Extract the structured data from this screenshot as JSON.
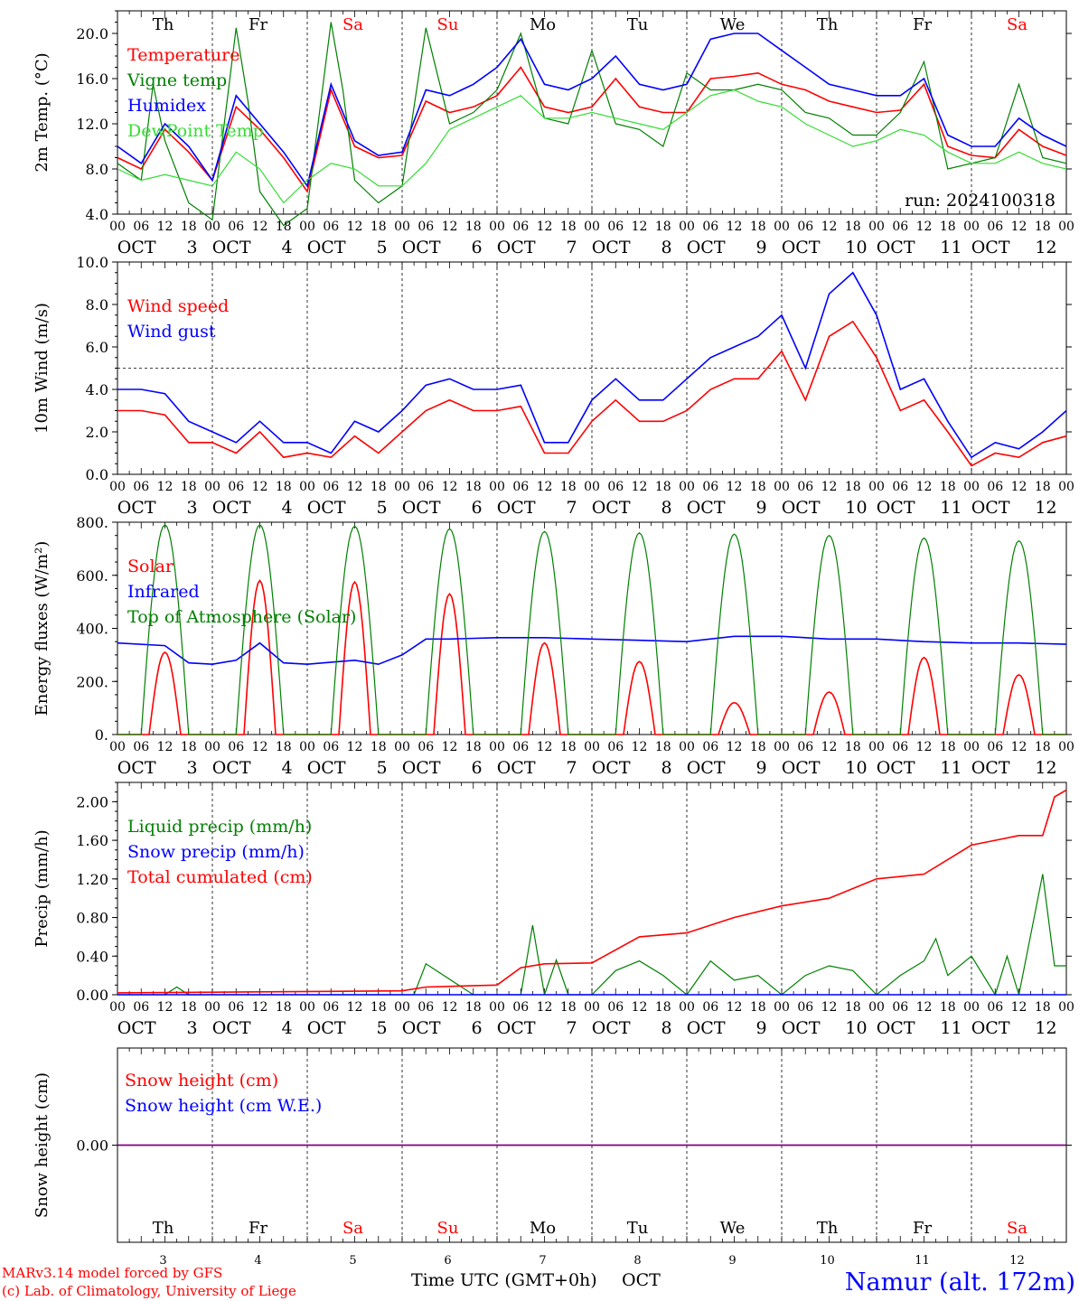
{
  "days": {
    "names": [
      "Th",
      "Fr",
      "Sa",
      "Su",
      "Mo",
      "Tu",
      "We",
      "Th",
      "Fr",
      "Sa"
    ],
    "weekend_flags": [
      false,
      false,
      true,
      true,
      false,
      false,
      false,
      false,
      false,
      true
    ],
    "dates": [
      "3",
      "4",
      "5",
      "6",
      "7",
      "8",
      "9",
      "10",
      "11",
      "12"
    ],
    "month": "OCT",
    "hour_ticks": [
      "00",
      "06",
      "12",
      "18"
    ],
    "final_hour": "00"
  },
  "colors": {
    "red": "#ff0000",
    "green": "#008000",
    "blue": "#0000ff",
    "lightgreen": "#33dd33",
    "purple": "#800080",
    "weekend": "#ff0000",
    "dark": "#000000"
  },
  "run_label": "run: 2024100318",
  "footer": {
    "model": "MARv3.14 model forced by GFS",
    "copyright": "(c) Lab. of Climatology, University of Liege",
    "xlabel": "Time UTC (GMT+0h)",
    "month": "OCT",
    "station": "Namur (alt. 172m)"
  },
  "chart_data": [
    {
      "type": "line",
      "ylabel": "2m Temp. (°C)",
      "ylim": [
        4,
        22
      ],
      "yticks": [
        "4.0",
        "8.0",
        "12.0",
        "16.0",
        "20.0"
      ],
      "ytick_values": [
        4,
        8,
        12,
        16,
        20
      ],
      "x_unit": "hours since Oct 3 00 UTC",
      "series": [
        {
          "name": "Temperature",
          "color": "red",
          "x": [
            0,
            6,
            12,
            18,
            24,
            30,
            36,
            42,
            48,
            54,
            60,
            66,
            72,
            78,
            84,
            90,
            96,
            102,
            108,
            114,
            120,
            126,
            132,
            138,
            144,
            150,
            156,
            162,
            168,
            174,
            180,
            186,
            192,
            198,
            204,
            210,
            216,
            222,
            228,
            234,
            240
          ],
          "y": [
            9.0,
            8.0,
            11.5,
            9.5,
            7.0,
            13.5,
            11.5,
            9.0,
            6.0,
            15.0,
            10.0,
            9.0,
            9.2,
            14.0,
            13.0,
            13.5,
            14.5,
            17.0,
            13.5,
            13.0,
            13.5,
            16.0,
            13.5,
            13.0,
            13.0,
            16.0,
            16.2,
            16.5,
            15.5,
            15.0,
            14.0,
            13.5,
            13.0,
            13.2,
            15.5,
            10.0,
            9.2,
            9.0,
            11.5,
            10.0,
            9.2
          ]
        },
        {
          "name": "Vigne temp",
          "color": "green",
          "x": [
            0,
            6,
            9,
            12,
            18,
            24,
            30,
            33,
            36,
            42,
            48,
            54,
            57,
            60,
            66,
            72,
            78,
            84,
            90,
            96,
            102,
            108,
            114,
            120,
            126,
            132,
            138,
            144,
            150,
            156,
            162,
            168,
            174,
            180,
            186,
            192,
            198,
            204,
            210,
            216,
            222,
            228,
            234,
            240
          ],
          "y": [
            8.5,
            7.0,
            15.5,
            10.5,
            5.0,
            3.5,
            20.5,
            14.0,
            6.0,
            3.0,
            4.5,
            21.0,
            15.0,
            7.0,
            5.0,
            6.5,
            20.5,
            12.0,
            13.0,
            15.0,
            20.0,
            12.5,
            12.0,
            18.5,
            12.0,
            11.5,
            10.0,
            16.5,
            15.0,
            15.0,
            15.5,
            15.0,
            13.0,
            12.5,
            11.0,
            11.0,
            13.0,
            17.5,
            8.0,
            8.5,
            9.0,
            15.5,
            9.0,
            8.5
          ]
        },
        {
          "name": "Humidex",
          "color": "blue",
          "x": [
            0,
            6,
            12,
            18,
            24,
            30,
            36,
            42,
            48,
            54,
            60,
            66,
            72,
            78,
            84,
            90,
            96,
            102,
            108,
            114,
            120,
            126,
            132,
            138,
            144,
            150,
            156,
            162,
            168,
            174,
            180,
            186,
            192,
            198,
            204,
            210,
            216,
            222,
            228,
            234,
            240
          ],
          "y": [
            10.0,
            8.5,
            12.0,
            10.0,
            7.0,
            14.5,
            12.0,
            9.5,
            6.5,
            15.5,
            10.5,
            9.2,
            9.5,
            15.0,
            14.5,
            15.5,
            17.0,
            19.5,
            15.5,
            15.0,
            16.0,
            18.0,
            15.5,
            15.0,
            15.5,
            19.5,
            20.0,
            20.0,
            18.5,
            17.0,
            15.5,
            15.0,
            14.5,
            14.5,
            16.0,
            11.0,
            10.0,
            10.0,
            12.5,
            11.0,
            10.0
          ]
        },
        {
          "name": "DewPoint Temp",
          "color": "lightgreen",
          "x": [
            0,
            6,
            12,
            18,
            24,
            30,
            36,
            42,
            48,
            54,
            60,
            66,
            72,
            78,
            84,
            90,
            96,
            102,
            108,
            114,
            120,
            126,
            132,
            138,
            144,
            150,
            156,
            162,
            168,
            174,
            180,
            186,
            192,
            198,
            204,
            210,
            216,
            222,
            228,
            234,
            240
          ],
          "y": [
            8.0,
            7.0,
            7.5,
            7.0,
            6.5,
            9.5,
            8.0,
            5.0,
            7.0,
            8.5,
            8.0,
            6.5,
            6.5,
            8.5,
            11.5,
            12.5,
            13.5,
            14.5,
            12.5,
            12.5,
            13.0,
            12.5,
            12.0,
            11.5,
            13.0,
            14.5,
            15.0,
            14.0,
            13.5,
            12.0,
            11.0,
            10.0,
            10.5,
            11.5,
            11.0,
            9.5,
            8.5,
            8.5,
            9.5,
            8.5,
            8.0
          ]
        }
      ]
    },
    {
      "type": "line",
      "ylabel": "10m Wind (m/s)",
      "ylim": [
        0,
        10
      ],
      "yticks": [
        "0.0",
        "2.0",
        "4.0",
        "6.0",
        "8.0",
        "10.0"
      ],
      "ytick_values": [
        0,
        2,
        4,
        6,
        8,
        10
      ],
      "reference_line": 5,
      "x_unit": "hours since Oct 3 00 UTC",
      "series": [
        {
          "name": "Wind speed",
          "color": "red",
          "x": [
            0,
            6,
            12,
            18,
            24,
            30,
            36,
            42,
            48,
            54,
            60,
            66,
            72,
            78,
            84,
            90,
            96,
            102,
            108,
            114,
            120,
            126,
            132,
            138,
            144,
            150,
            156,
            162,
            168,
            174,
            180,
            186,
            192,
            198,
            204,
            210,
            216,
            222,
            228,
            234,
            240
          ],
          "y": [
            3.0,
            3.0,
            2.8,
            1.5,
            1.5,
            1.0,
            2.0,
            0.8,
            1.0,
            0.8,
            1.8,
            1.0,
            2.0,
            3.0,
            3.5,
            3.0,
            3.0,
            3.2,
            1.0,
            1.0,
            2.5,
            3.5,
            2.5,
            2.5,
            3.0,
            4.0,
            4.5,
            4.5,
            5.8,
            3.5,
            6.5,
            7.2,
            5.5,
            3.0,
            3.5,
            2.0,
            0.4,
            1.0,
            0.8,
            1.5,
            1.8
          ]
        },
        {
          "name": "Wind gust",
          "color": "blue",
          "x": [
            0,
            6,
            12,
            18,
            24,
            30,
            36,
            42,
            48,
            54,
            60,
            66,
            72,
            78,
            84,
            90,
            96,
            102,
            108,
            114,
            120,
            126,
            132,
            138,
            144,
            150,
            156,
            162,
            168,
            174,
            180,
            186,
            192,
            198,
            204,
            210,
            216,
            222,
            228,
            234,
            240
          ],
          "y": [
            4.0,
            4.0,
            3.8,
            2.5,
            2.0,
            1.5,
            2.5,
            1.5,
            1.5,
            1.0,
            2.5,
            2.0,
            3.0,
            4.2,
            4.5,
            4.0,
            4.0,
            4.2,
            1.5,
            1.5,
            3.5,
            4.5,
            3.5,
            3.5,
            4.5,
            5.5,
            6.0,
            6.5,
            7.5,
            5.0,
            8.5,
            9.5,
            7.5,
            4.0,
            4.5,
            2.5,
            0.8,
            1.5,
            1.2,
            2.0,
            3.0
          ]
        }
      ]
    },
    {
      "type": "line",
      "ylabel": "Energy fluxes (W/m²)",
      "ylim": [
        0,
        800
      ],
      "yticks": [
        "0.",
        "200.",
        "400.",
        "600.",
        "800."
      ],
      "ytick_values": [
        0,
        200,
        400,
        600,
        800
      ],
      "x_unit": "hours since Oct 3 00 UTC",
      "series": [
        {
          "name": "Solar",
          "color": "red",
          "peaks": [
            310,
            580,
            575,
            530,
            345,
            275,
            120,
            160,
            290,
            225
          ]
        },
        {
          "name": "Infrared",
          "color": "blue",
          "x": [
            0,
            12,
            18,
            24,
            30,
            36,
            42,
            48,
            60,
            66,
            72,
            78,
            84,
            96,
            108,
            120,
            132,
            144,
            156,
            168,
            180,
            192,
            204,
            216,
            228,
            240
          ],
          "y": [
            345,
            335,
            270,
            265,
            280,
            345,
            270,
            265,
            280,
            265,
            300,
            360,
            360,
            365,
            365,
            360,
            355,
            350,
            370,
            370,
            360,
            360,
            350,
            345,
            345,
            340
          ]
        },
        {
          "name": "Top of Atmosphere (Solar)",
          "color": "green",
          "peaks": [
            790,
            790,
            785,
            775,
            765,
            760,
            755,
            750,
            740,
            730
          ]
        }
      ]
    },
    {
      "type": "line",
      "ylabel": "Precip (mm/h)",
      "ylim": [
        0,
        2.2
      ],
      "yticks": [
        "0.00",
        "0.40",
        "0.80",
        "1.20",
        "1.60",
        "2.00"
      ],
      "ytick_values": [
        0,
        0.4,
        0.8,
        1.2,
        1.6,
        2.0
      ],
      "x_unit": "hours since Oct 3 00 UTC",
      "series": [
        {
          "name": "Liquid precip (mm/h)",
          "color": "green",
          "x": [
            0,
            12,
            15,
            18,
            72,
            75,
            78,
            90,
            102,
            105,
            108,
            111,
            114,
            120,
            126,
            132,
            138,
            144,
            150,
            156,
            162,
            168,
            174,
            180,
            186,
            192,
            198,
            204,
            207,
            210,
            216,
            222,
            225,
            228,
            234,
            237,
            240
          ],
          "y": [
            0,
            0,
            0.08,
            0,
            0,
            0,
            0.32,
            0,
            0,
            0.72,
            0,
            0.36,
            0,
            0,
            0.25,
            0.35,
            0.2,
            0,
            0.35,
            0.15,
            0.2,
            0,
            0.2,
            0.3,
            0.25,
            0,
            0.2,
            0.35,
            0.58,
            0.2,
            0.4,
            0,
            0.4,
            0,
            1.25,
            0.3,
            0.3
          ]
        },
        {
          "name": "Snow precip (mm/h)",
          "color": "blue",
          "x": [
            0,
            240
          ],
          "y": [
            0,
            0
          ]
        },
        {
          "name": "Total cumulated (cm)",
          "color": "red",
          "x": [
            0,
            72,
            78,
            96,
            102,
            108,
            120,
            132,
            144,
            156,
            168,
            180,
            192,
            204,
            216,
            222,
            228,
            234,
            237,
            240
          ],
          "y": [
            0.02,
            0.04,
            0.08,
            0.1,
            0.28,
            0.32,
            0.33,
            0.6,
            0.64,
            0.8,
            0.92,
            1.0,
            1.2,
            1.25,
            1.55,
            1.6,
            1.65,
            1.65,
            2.05,
            2.12
          ]
        }
      ]
    },
    {
      "type": "line",
      "ylabel": "Snow height (cm)",
      "ylim": [
        -1,
        1
      ],
      "yticks": [
        "0.00"
      ],
      "ytick_values": [
        0
      ],
      "x_unit": "hours since Oct 3 00 UTC",
      "series": [
        {
          "name": "Snow height (cm)",
          "color": "red",
          "x": [
            0,
            240
          ],
          "y": [
            0,
            0
          ]
        },
        {
          "name": "Snow height (cm W.E.)",
          "color": "blue",
          "x": [
            0,
            240
          ],
          "y": [
            0,
            0
          ]
        }
      ]
    }
  ]
}
